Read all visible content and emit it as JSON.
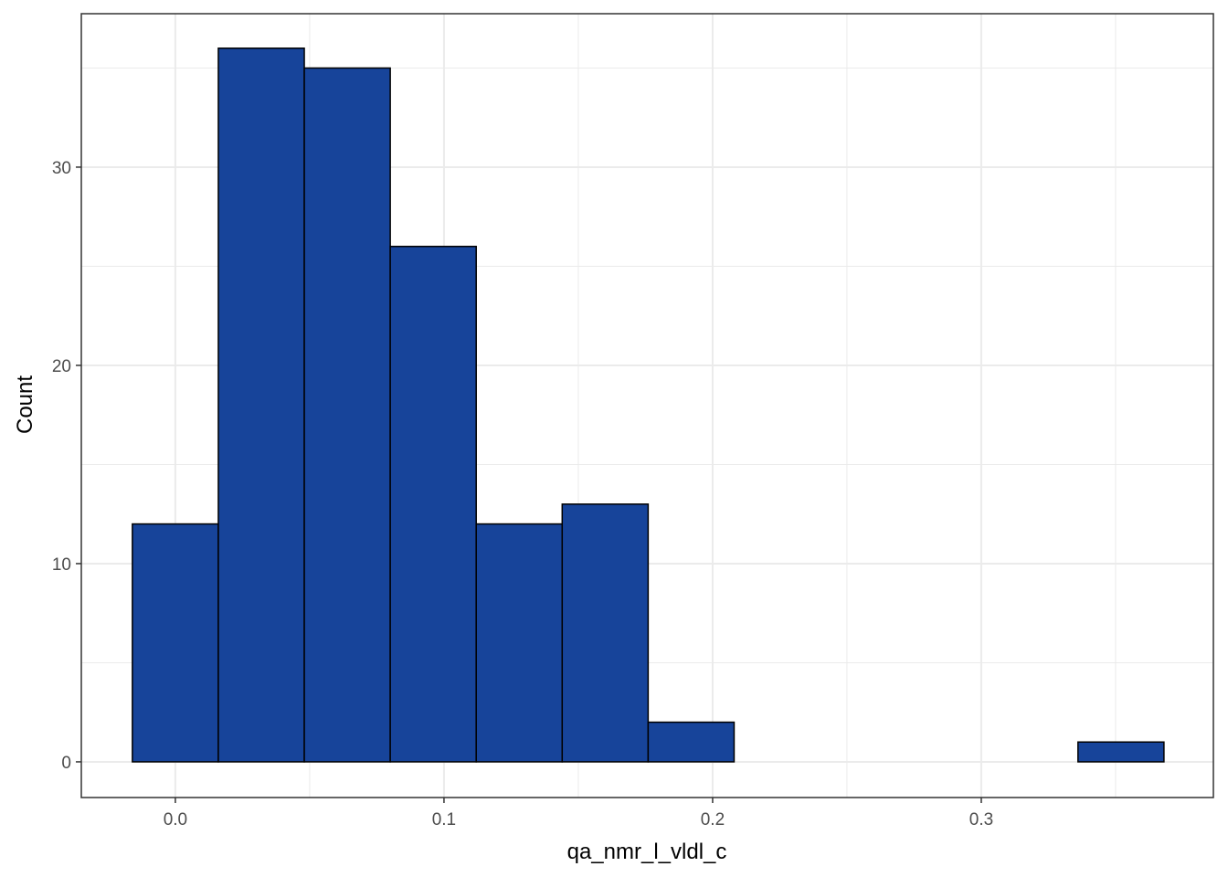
{
  "chart_data": {
    "type": "histogram",
    "x_label": "qa_nmr_l_vldl_c",
    "y_label": "Count",
    "bins": [
      -0.016,
      0.016,
      0.048,
      0.08,
      0.112,
      0.144,
      0.176,
      0.208,
      0.24,
      0.272,
      0.304,
      0.336,
      0.368
    ],
    "values": [
      12,
      36,
      35,
      26,
      12,
      13,
      2,
      0,
      0,
      0,
      0,
      1
    ],
    "color": "#17449a",
    "edge_color": "#000000",
    "xlim": [
      -0.035,
      0.3864
    ],
    "ylim": [
      -1.8,
      37.74
    ],
    "xticks": [
      {
        "value": 0,
        "label": "0.0"
      },
      0.1,
      0.2,
      0.3
    ],
    "yticks": [
      0,
      10,
      20,
      30
    ],
    "x_minor_grid": [
      0.05,
      0.15,
      0.25,
      0.35
    ],
    "y_minor_grid": [
      5,
      15,
      25,
      35
    ],
    "grid": true
  }
}
